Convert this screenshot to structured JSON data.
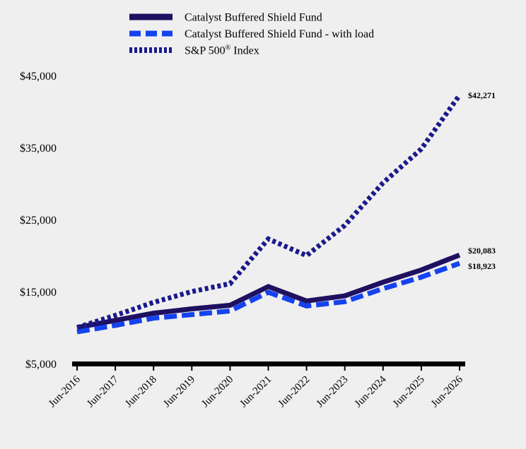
{
  "chart_data": {
    "type": "line",
    "title": "",
    "xlabel": "",
    "ylabel": "",
    "categories": [
      "Jun-2016",
      "Jun-2017",
      "Jun-2018",
      "Jun-2019",
      "Jun-2020",
      "Jun-2021",
      "Jun-2022",
      "Jun-2023",
      "Jun-2024",
      "Jun-2025",
      "Jun-2026"
    ],
    "ylim": [
      5000,
      45000
    ],
    "yticks": [
      "$5,000",
      "$15,000",
      "$25,000",
      "$35,000",
      "$45,000"
    ],
    "ytick_values": [
      5000,
      15000,
      25000,
      35000,
      45000
    ],
    "grid": false,
    "legend_placement": "top-center",
    "series": [
      {
        "name": "Catalyst Buffered Shield Fund",
        "style": "solid",
        "color": "#1f1060",
        "values": [
          10000,
          11000,
          12000,
          12600,
          13100,
          15700,
          13700,
          14400,
          16300,
          18000,
          20083
        ],
        "end_label": "$20,083"
      },
      {
        "name": "Catalyst Buffered Shield Fund - with load",
        "style": "dashed",
        "color": "#1443ef",
        "values": [
          9400,
          10300,
          11300,
          11800,
          12300,
          14900,
          13000,
          13600,
          15400,
          17000,
          18923
        ],
        "end_label": "$18,923"
      },
      {
        "name": "S&P 500® Index",
        "style": "dotted",
        "color": "#1a1a8c",
        "values": [
          10000,
          11700,
          13500,
          15000,
          16100,
          22300,
          20000,
          24200,
          30100,
          34800,
          42271
        ],
        "end_label": "$42,271"
      }
    ]
  }
}
